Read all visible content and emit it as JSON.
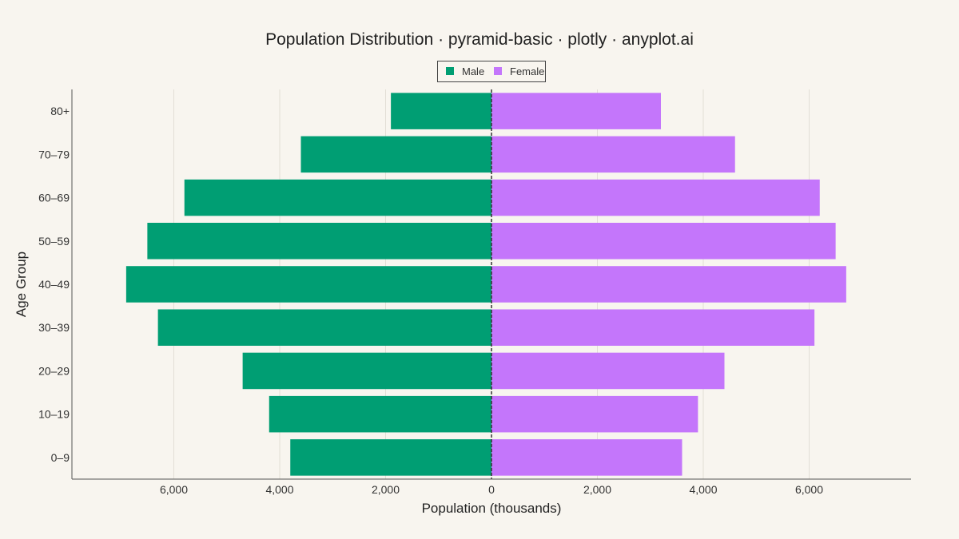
{
  "chart_data": {
    "type": "bar",
    "orientation": "horizontal",
    "title": "Population Distribution · pyramid-basic · plotly · anyplot.ai",
    "xlabel": "Population (thousands)",
    "ylabel": "Age Group",
    "categories": [
      "0–9",
      "10–19",
      "20–29",
      "30–39",
      "40–49",
      "50–59",
      "60–69",
      "70–79",
      "80+"
    ],
    "series": [
      {
        "name": "Male",
        "color": "#009e73",
        "values": [
          3800,
          4200,
          4700,
          6300,
          6900,
          6500,
          5800,
          3600,
          1900
        ]
      },
      {
        "name": "Female",
        "color": "#c476fb",
        "values": [
          3600,
          3900,
          4400,
          6100,
          6700,
          6500,
          6200,
          4600,
          3200
        ]
      }
    ],
    "x_tick_labels": [
      "6,000",
      "4,000",
      "2,000",
      "0",
      "2,000",
      "4,000",
      "6,000"
    ],
    "xlim": [
      -7900,
      7900
    ],
    "grid": "vertical",
    "legend_position": "top-center"
  }
}
